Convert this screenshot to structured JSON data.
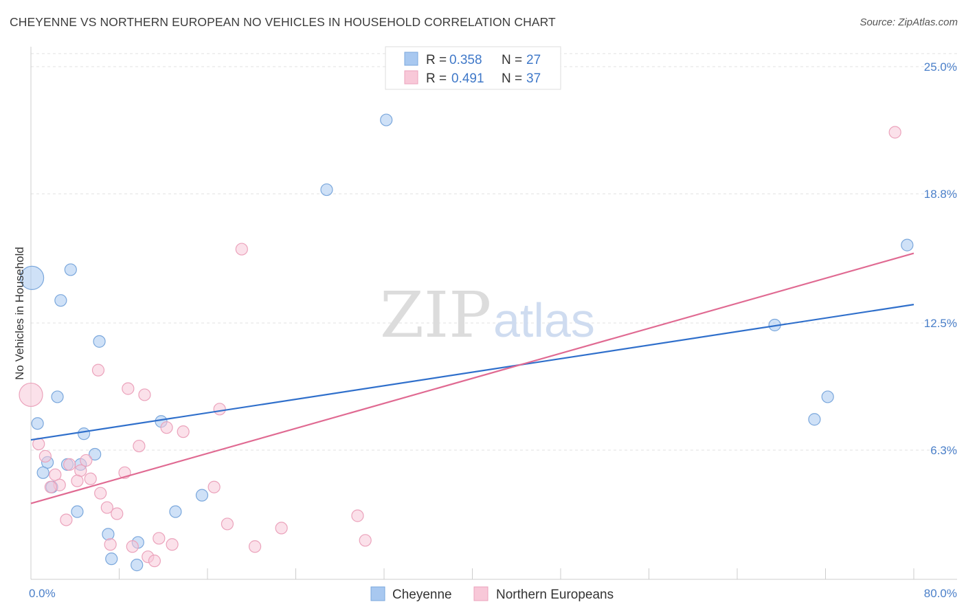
{
  "title": "CHEYENNE VS NORTHERN EUROPEAN NO VEHICLES IN HOUSEHOLD CORRELATION CHART",
  "source": "Source: ZipAtlas.com",
  "watermark": {
    "zip": "ZIP",
    "atlas": "atlas"
  },
  "legend": {
    "r_label": "R =",
    "n_label": "N =",
    "rows": [
      {
        "r": "0.358",
        "n": "27"
      },
      {
        "r": "0.491",
        "n": "37"
      }
    ]
  },
  "chart_data": {
    "type": "scatter",
    "title": "CHEYENNE VS NORTHERN EUROPEAN NO VEHICLES IN HOUSEHOLD CORRELATION CHART",
    "xlabel": "",
    "ylabel": "No Vehicles in Household",
    "xlim": [
      0,
      80
    ],
    "ylim": [
      0,
      26
    ],
    "x_tick_labels": [
      "0.0%",
      "80.0%"
    ],
    "y_ticks": [
      6.3,
      12.5,
      18.8,
      25.0
    ],
    "y_tick_labels": [
      "6.3%",
      "12.5%",
      "18.8%",
      "25.0%"
    ],
    "grid": true,
    "legend_position": "top-center",
    "series": [
      {
        "name": "Cheyenne",
        "color": "#a8c8f0",
        "stroke": "#7aa7dc",
        "line_color": "#2f6fcb",
        "trend": {
          "x": [
            0,
            80
          ],
          "y": [
            6.8,
            13.4
          ]
        },
        "points": [
          {
            "x": 0.1,
            "y": 14.7,
            "big": true
          },
          {
            "x": 3.6,
            "y": 15.1
          },
          {
            "x": 2.7,
            "y": 13.6
          },
          {
            "x": 6.2,
            "y": 11.6
          },
          {
            "x": 2.4,
            "y": 8.9
          },
          {
            "x": 0.6,
            "y": 7.6
          },
          {
            "x": 4.8,
            "y": 7.1
          },
          {
            "x": 11.8,
            "y": 7.7
          },
          {
            "x": 5.8,
            "y": 6.1
          },
          {
            "x": 1.5,
            "y": 5.7
          },
          {
            "x": 3.3,
            "y": 5.6
          },
          {
            "x": 4.5,
            "y": 5.6
          },
          {
            "x": 1.1,
            "y": 5.2
          },
          {
            "x": 1.9,
            "y": 4.5
          },
          {
            "x": 15.5,
            "y": 4.1
          },
          {
            "x": 4.2,
            "y": 3.3
          },
          {
            "x": 13.1,
            "y": 3.3
          },
          {
            "x": 7.0,
            "y": 2.2
          },
          {
            "x": 9.7,
            "y": 1.8
          },
          {
            "x": 7.3,
            "y": 1.0
          },
          {
            "x": 9.6,
            "y": 0.7
          },
          {
            "x": 32.2,
            "y": 22.4
          },
          {
            "x": 26.8,
            "y": 19.0
          },
          {
            "x": 67.4,
            "y": 12.4
          },
          {
            "x": 72.2,
            "y": 8.9
          },
          {
            "x": 71.0,
            "y": 7.8
          },
          {
            "x": 79.4,
            "y": 16.3
          }
        ]
      },
      {
        "name": "Northern Europeans",
        "color": "#f8c8d8",
        "stroke": "#eba2bb",
        "line_color": "#e06a92",
        "trend": {
          "x": [
            0,
            80
          ],
          "y": [
            3.7,
            15.9
          ]
        },
        "points": [
          {
            "x": 0.0,
            "y": 9.0,
            "big": true
          },
          {
            "x": 19.1,
            "y": 16.1
          },
          {
            "x": 78.3,
            "y": 21.8
          },
          {
            "x": 6.1,
            "y": 10.2
          },
          {
            "x": 8.8,
            "y": 9.3
          },
          {
            "x": 10.3,
            "y": 9.0
          },
          {
            "x": 17.1,
            "y": 8.3
          },
          {
            "x": 12.3,
            "y": 7.4
          },
          {
            "x": 13.8,
            "y": 7.2
          },
          {
            "x": 0.7,
            "y": 6.6
          },
          {
            "x": 9.8,
            "y": 6.5
          },
          {
            "x": 1.3,
            "y": 6.0
          },
          {
            "x": 5.0,
            "y": 5.8
          },
          {
            "x": 3.5,
            "y": 5.6
          },
          {
            "x": 4.5,
            "y": 5.3
          },
          {
            "x": 8.5,
            "y": 5.2
          },
          {
            "x": 2.2,
            "y": 5.1
          },
          {
            "x": 5.4,
            "y": 4.9
          },
          {
            "x": 4.2,
            "y": 4.8
          },
          {
            "x": 2.6,
            "y": 4.6
          },
          {
            "x": 1.8,
            "y": 4.5
          },
          {
            "x": 16.6,
            "y": 4.5
          },
          {
            "x": 6.3,
            "y": 4.2
          },
          {
            "x": 6.9,
            "y": 3.5
          },
          {
            "x": 7.8,
            "y": 3.2
          },
          {
            "x": 3.2,
            "y": 2.9
          },
          {
            "x": 29.6,
            "y": 3.1
          },
          {
            "x": 17.8,
            "y": 2.7
          },
          {
            "x": 22.7,
            "y": 2.5
          },
          {
            "x": 11.6,
            "y": 2.0
          },
          {
            "x": 7.2,
            "y": 1.7
          },
          {
            "x": 9.2,
            "y": 1.6
          },
          {
            "x": 12.8,
            "y": 1.7
          },
          {
            "x": 20.3,
            "y": 1.6
          },
          {
            "x": 30.3,
            "y": 1.9
          },
          {
            "x": 10.6,
            "y": 1.1
          },
          {
            "x": 11.2,
            "y": 0.9
          }
        ]
      }
    ]
  }
}
